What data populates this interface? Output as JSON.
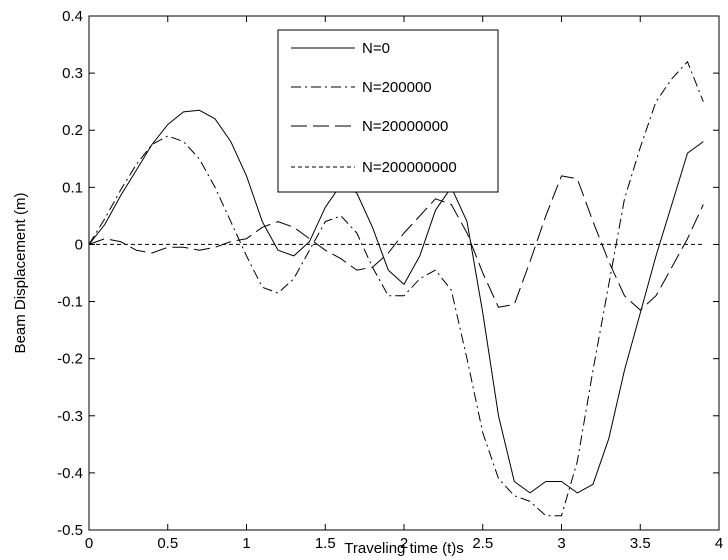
{
  "chart_data": {
    "type": "line",
    "title": "",
    "xlabel": "Traveling time (t)s",
    "ylabel": "Beam Displacement (m)",
    "xlim": [
      0,
      4
    ],
    "ylim": [
      -0.5,
      0.4
    ],
    "xticks": [
      "0",
      "0.5",
      "1",
      "1.5",
      "2",
      "2.5",
      "3",
      "3.5",
      "4"
    ],
    "yticks": [
      "0.4",
      "0.3",
      "0.2",
      "0.1",
      "0",
      "-0.1",
      "-0.2",
      "-0.3",
      "-0.4",
      "-0.5"
    ],
    "grid": false,
    "legend_position": "top-center",
    "series": [
      {
        "name": "N=0",
        "style": "solid",
        "color": "#000000",
        "x": [
          0,
          0.1,
          0.2,
          0.3,
          0.4,
          0.5,
          0.6,
          0.7,
          0.8,
          0.9,
          1.0,
          1.1,
          1.2,
          1.3,
          1.4,
          1.5,
          1.6,
          1.7,
          1.8,
          1.9,
          2.0,
          2.1,
          2.2,
          2.3,
          2.4,
          2.5,
          2.6,
          2.7,
          2.8,
          2.9,
          3.0,
          3.1,
          3.2,
          3.3,
          3.4,
          3.5,
          3.6,
          3.7,
          3.8,
          3.9
        ],
        "y": [
          0,
          0.035,
          0.085,
          0.13,
          0.175,
          0.21,
          0.232,
          0.235,
          0.22,
          0.18,
          0.12,
          0.04,
          -0.01,
          -0.02,
          0.005,
          0.065,
          0.105,
          0.09,
          0.03,
          -0.045,
          -0.07,
          -0.02,
          0.06,
          0.1,
          0.04,
          -0.12,
          -0.3,
          -0.415,
          -0.435,
          -0.415,
          -0.415,
          -0.435,
          -0.42,
          -0.34,
          -0.22,
          -0.12,
          -0.02,
          0.07,
          0.16,
          0.18
        ]
      },
      {
        "name": "N=200000",
        "style": "dashdot",
        "color": "#000000",
        "x": [
          0,
          0.1,
          0.2,
          0.3,
          0.4,
          0.5,
          0.6,
          0.7,
          0.8,
          0.9,
          1.0,
          1.1,
          1.2,
          1.3,
          1.4,
          1.5,
          1.6,
          1.7,
          1.8,
          1.9,
          2.0,
          2.1,
          2.2,
          2.3,
          2.4,
          2.5,
          2.6,
          2.7,
          2.8,
          2.9,
          3.0,
          3.1,
          3.2,
          3.3,
          3.4,
          3.5,
          3.6,
          3.7,
          3.8,
          3.9
        ],
        "y": [
          0,
          0.045,
          0.095,
          0.14,
          0.175,
          0.19,
          0.18,
          0.15,
          0.1,
          0.04,
          -0.02,
          -0.075,
          -0.085,
          -0.06,
          -0.01,
          0.04,
          0.05,
          0.02,
          -0.04,
          -0.09,
          -0.09,
          -0.06,
          -0.045,
          -0.08,
          -0.2,
          -0.33,
          -0.41,
          -0.44,
          -0.45,
          -0.475,
          -0.475,
          -0.38,
          -0.22,
          -0.07,
          0.08,
          0.17,
          0.25,
          0.29,
          0.32,
          0.25
        ]
      },
      {
        "name": "N=20000000",
        "style": "longdash",
        "color": "#000000",
        "x": [
          0,
          0.1,
          0.2,
          0.3,
          0.4,
          0.5,
          0.6,
          0.7,
          0.8,
          0.9,
          1.0,
          1.1,
          1.2,
          1.3,
          1.4,
          1.5,
          1.6,
          1.7,
          1.8,
          1.9,
          2.0,
          2.1,
          2.2,
          2.3,
          2.4,
          2.5,
          2.6,
          2.7,
          2.8,
          2.9,
          3.0,
          3.1,
          3.2,
          3.3,
          3.4,
          3.5,
          3.6,
          3.7,
          3.8,
          3.9
        ],
        "y": [
          0,
          0.01,
          0.005,
          -0.01,
          -0.015,
          -0.005,
          -0.005,
          -0.01,
          -0.005,
          0.005,
          0.01,
          0.03,
          0.04,
          0.03,
          0.01,
          -0.01,
          -0.025,
          -0.045,
          -0.04,
          -0.015,
          0.02,
          0.05,
          0.08,
          0.07,
          0.02,
          -0.05,
          -0.11,
          -0.105,
          -0.03,
          0.05,
          0.12,
          0.115,
          0.04,
          -0.03,
          -0.09,
          -0.115,
          -0.09,
          -0.04,
          0.01,
          0.07
        ]
      },
      {
        "name": "N=200000000",
        "style": "shortdash",
        "color": "#000000",
        "x": [
          0,
          0.5,
          1.0,
          1.5,
          2.0,
          2.5,
          3.0,
          3.5,
          3.9
        ],
        "y": [
          0,
          0,
          0,
          0,
          0,
          0,
          0,
          0,
          0
        ]
      }
    ]
  }
}
